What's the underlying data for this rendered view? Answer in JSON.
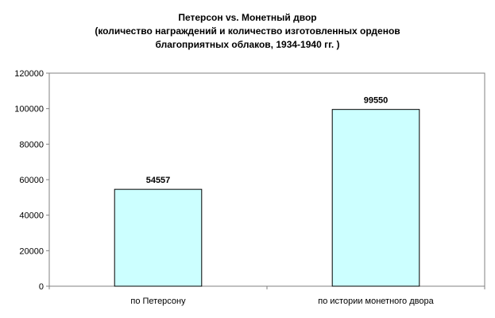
{
  "chart_data": {
    "type": "bar",
    "title_lines": [
      "Петерсон vs. Монетный двор",
      "(количество награждений и количество изготовленных орденов",
      "благоприятных облаков, 1934-1940 гг. )"
    ],
    "categories": [
      "по Петерсону",
      "по истории монетного двора"
    ],
    "values": [
      54557,
      99550
    ],
    "data_labels": [
      "54557",
      "99550"
    ],
    "ylim": [
      0,
      120000
    ],
    "y_ticks": [
      0,
      20000,
      40000,
      60000,
      80000,
      100000,
      120000
    ],
    "y_tick_labels": [
      "0",
      "20000",
      "40000",
      "60000",
      "80000",
      "100000",
      "120000"
    ],
    "xlabel": "",
    "ylabel": "",
    "grid": false,
    "legend": "none",
    "colors": {
      "bar_fill": "#ccffff",
      "bar_stroke": "#000000",
      "axis": "#808080",
      "plot_border": "#808080"
    }
  }
}
